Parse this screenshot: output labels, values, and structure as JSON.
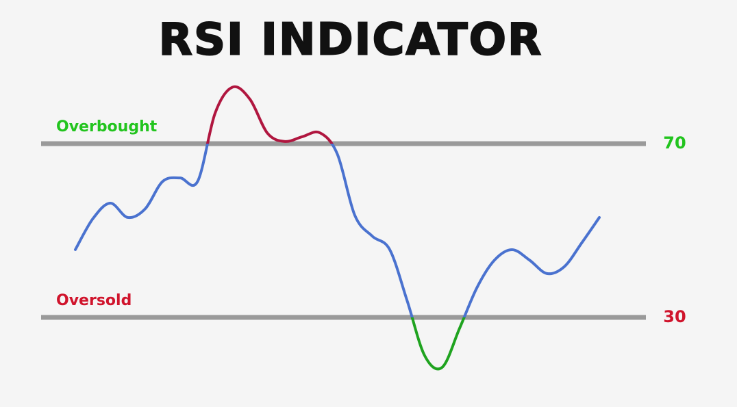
{
  "chart_data": {
    "type": "line",
    "title": "RSI INDICATOR",
    "categories": [
      null,
      null,
      null,
      null,
      null,
      null,
      null,
      null,
      null,
      null,
      null,
      null,
      null,
      null,
      null,
      null,
      null,
      null,
      null,
      null,
      null,
      null,
      null,
      null,
      null,
      null,
      null,
      null,
      null,
      null,
      null
    ],
    "values": [
      45.6,
      52.7,
      56.3,
      53,
      55,
      61.3,
      62.1,
      61.3,
      77,
      83,
      80.2,
      72.4,
      70.5,
      71.6,
      72.5,
      67.6,
      53.5,
      48.7,
      45.6,
      33.8,
      21.2,
      18.5,
      27.5,
      36.9,
      43.2,
      45.6,
      43.2,
      40.1,
      41.7,
      47.2,
      53
    ],
    "color": "#4a72cf",
    "above_color": "#b0163f",
    "below_color": "#1fa31f",
    "ylim": [
      15,
      85
    ],
    "yticks": [
      30,
      70
    ],
    "ytick_colors": [
      "#d0142c",
      "#22c41e"
    ],
    "annotations": [
      "Oversold",
      "Overbought"
    ],
    "grid": true,
    "grid_color": "#9a9a9a"
  }
}
